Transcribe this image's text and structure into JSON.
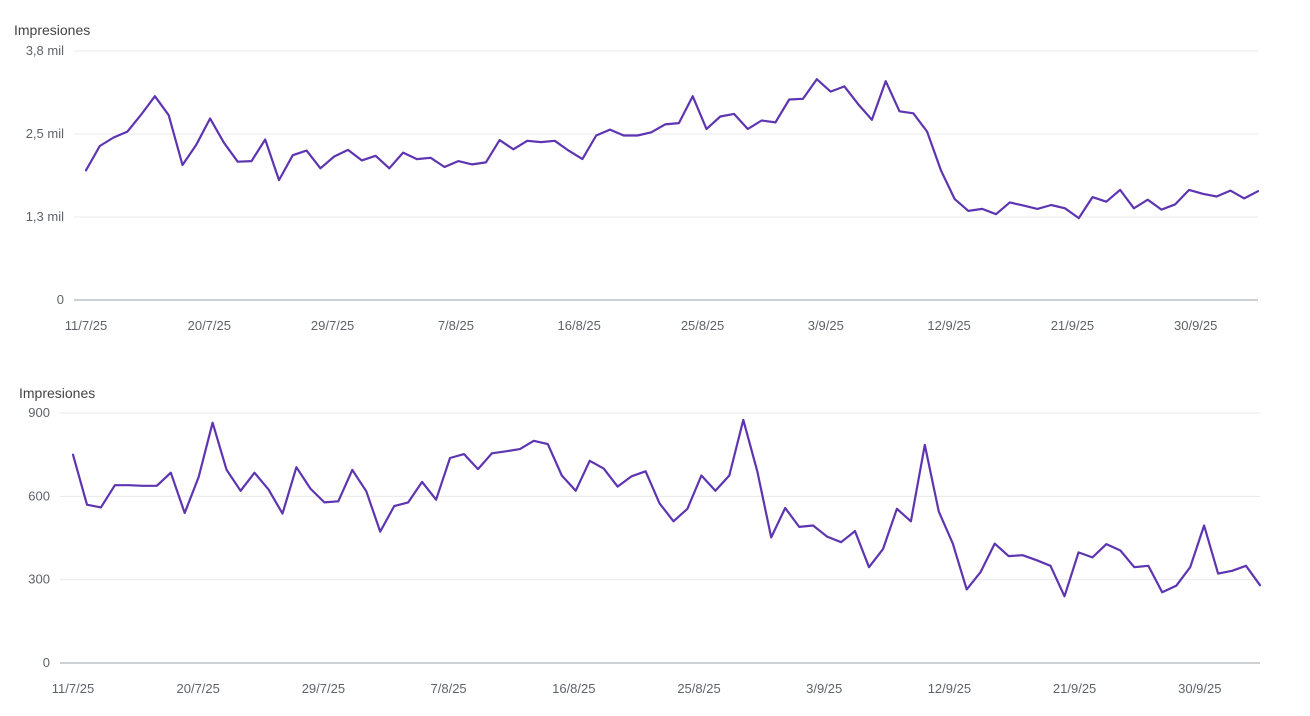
{
  "chart_data": [
    {
      "type": "line",
      "title": "",
      "ylabel": "Impresiones",
      "xlabel": "",
      "ylim": [
        0,
        3800
      ],
      "yticks": [
        {
          "value": 0,
          "label": "0"
        },
        {
          "value": 1266.7,
          "label": "1,3 mil"
        },
        {
          "value": 2533.3,
          "label": "2,5 mil"
        },
        {
          "value": 3800,
          "label": "3,8 mil"
        }
      ],
      "xticks": [
        "11/7/25",
        "20/7/25",
        "29/7/25",
        "7/8/25",
        "16/8/25",
        "25/8/25",
        "3/9/25",
        "12/9/25",
        "21/9/25",
        "30/9/25"
      ],
      "grid": true,
      "color": "#5e35b1",
      "series": [
        {
          "name": "",
          "values": [
            1980,
            2350,
            2480,
            2570,
            2830,
            3110,
            2820,
            2060,
            2370,
            2770,
            2400,
            2110,
            2120,
            2450,
            1830,
            2210,
            2280,
            2010,
            2190,
            2290,
            2130,
            2200,
            2010,
            2250,
            2150,
            2170,
            2030,
            2120,
            2070,
            2100,
            2440,
            2300,
            2430,
            2410,
            2430,
            2280,
            2150,
            2510,
            2600,
            2510,
            2510,
            2560,
            2680,
            2700,
            3110,
            2610,
            2800,
            2840,
            2610,
            2740,
            2710,
            3060,
            3070,
            3370,
            3180,
            3260,
            2990,
            2750,
            3340,
            2880,
            2850,
            2570,
            1980,
            1540,
            1360,
            1390,
            1310,
            1490,
            1440,
            1390,
            1450,
            1400,
            1250,
            1570,
            1500,
            1680,
            1400,
            1530,
            1380,
            1460,
            1680,
            1620,
            1580,
            1670,
            1550,
            1660
          ]
        }
      ]
    },
    {
      "type": "line",
      "title": "",
      "ylabel": "Impresiones",
      "xlabel": "",
      "ylim": [
        0,
        900
      ],
      "yticks": [
        {
          "value": 0,
          "label": "0"
        },
        {
          "value": 300,
          "label": "300"
        },
        {
          "value": 600,
          "label": "600"
        },
        {
          "value": 900,
          "label": "900"
        }
      ],
      "xticks": [
        "11/7/25",
        "20/7/25",
        "29/7/25",
        "7/8/25",
        "16/8/25",
        "25/8/25",
        "3/9/25",
        "12/9/25",
        "21/9/25",
        "30/9/25"
      ],
      "grid": true,
      "color": "#5e35b1",
      "series": [
        {
          "name": "",
          "values": [
            750,
            570,
            560,
            640,
            640,
            638,
            638,
            685,
            540,
            670,
            865,
            695,
            620,
            685,
            625,
            538,
            705,
            628,
            578,
            582,
            695,
            618,
            473,
            565,
            578,
            652,
            588,
            738,
            752,
            698,
            755,
            762,
            770,
            800,
            788,
            675,
            620,
            728,
            700,
            635,
            672,
            690,
            575,
            510,
            555,
            675,
            620,
            675,
            875,
            690,
            452,
            558,
            490,
            495,
            455,
            435,
            475,
            345,
            410,
            555,
            510,
            785,
            545,
            430,
            265,
            328,
            430,
            385,
            388,
            370,
            350,
            240,
            398,
            380,
            428,
            405,
            345,
            350,
            255,
            278,
            345,
            495,
            322,
            332,
            350,
            280
          ]
        }
      ]
    }
  ]
}
